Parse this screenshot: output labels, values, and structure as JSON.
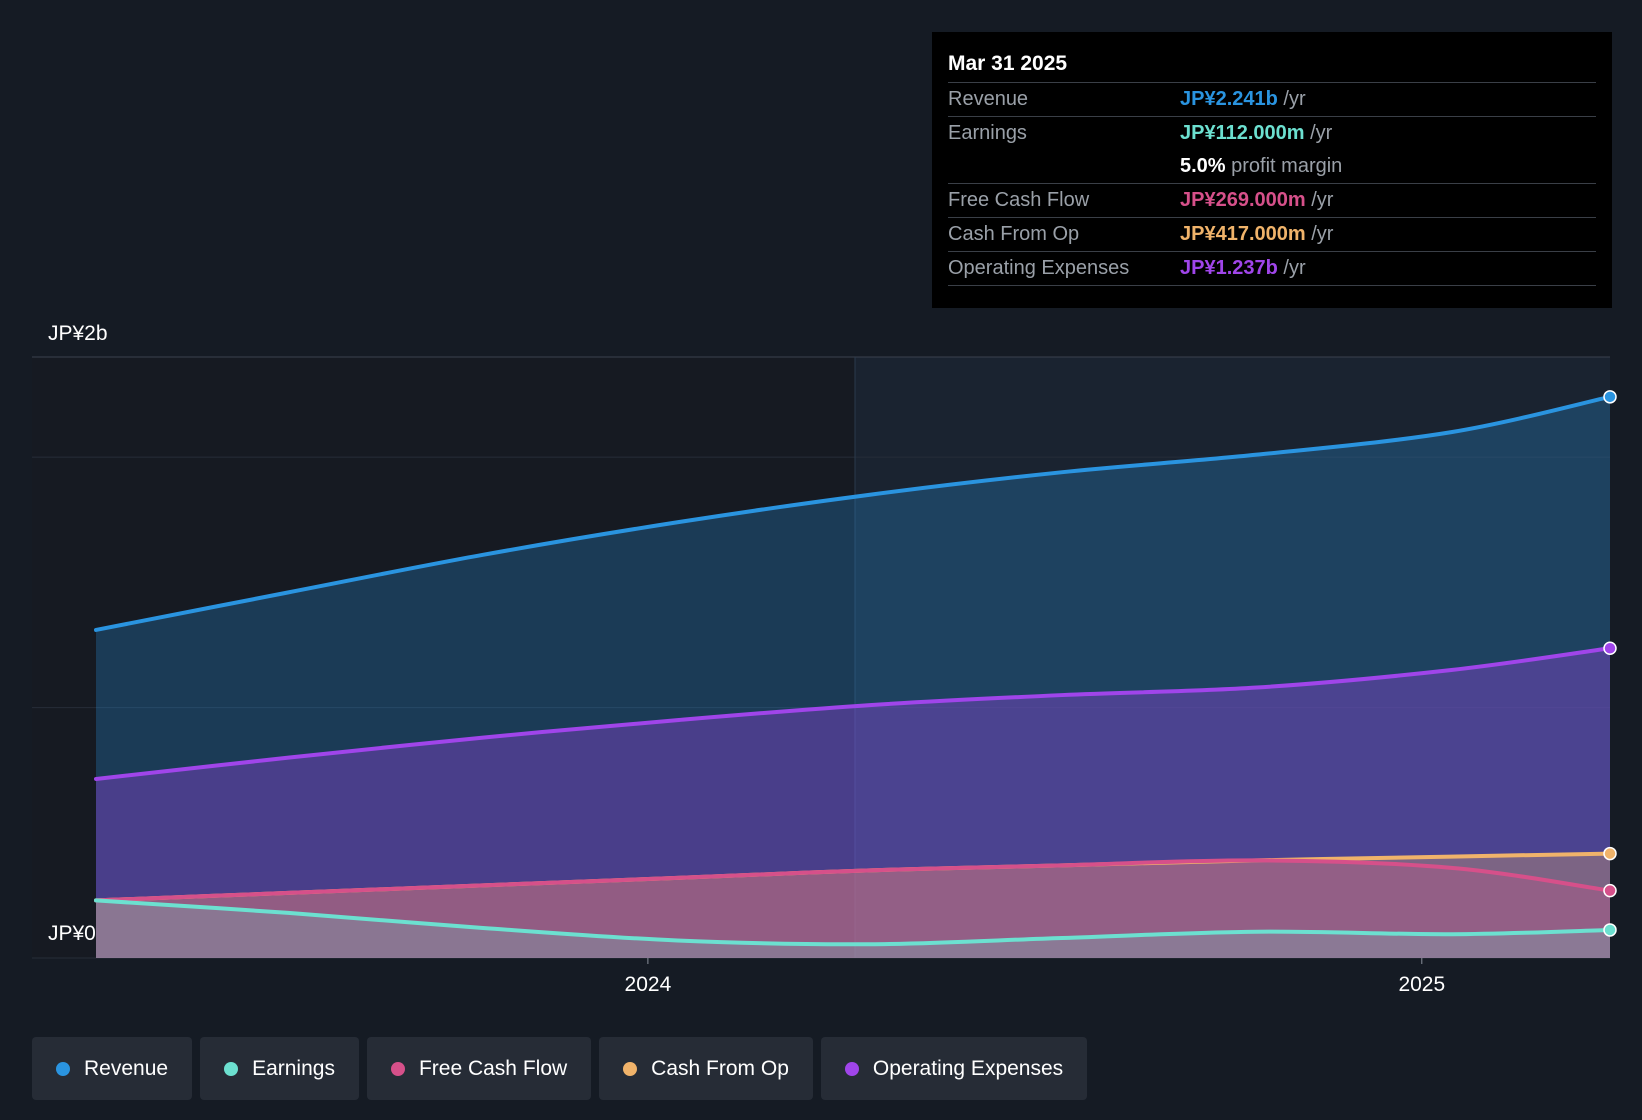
{
  "tooltip": {
    "date": "Mar 31 2025",
    "rows": [
      {
        "label": "Revenue",
        "value": "JP¥2.241b",
        "unit": "/yr",
        "color": "#2a94e0"
      },
      {
        "label": "Earnings",
        "value": "JP¥112.000m",
        "unit": "/yr",
        "color": "#6ce0d0"
      },
      {
        "label": "",
        "value": "5.0%",
        "unit": "profit margin",
        "color": "#ffffff"
      },
      {
        "label": "Free Cash Flow",
        "value": "JP¥269.000m",
        "unit": "/yr",
        "color": "#d6508a"
      },
      {
        "label": "Cash From Op",
        "value": "JP¥417.000m",
        "unit": "/yr",
        "color": "#f0b36a"
      },
      {
        "label": "Operating Expenses",
        "value": "JP¥1.237b",
        "unit": "/yr",
        "color": "#a045ea"
      }
    ]
  },
  "legend": [
    {
      "label": "Revenue",
      "color": "#2a94e0"
    },
    {
      "label": "Earnings",
      "color": "#6ce0d0"
    },
    {
      "label": "Free Cash Flow",
      "color": "#d6508a"
    },
    {
      "label": "Cash From Op",
      "color": "#f0b36a"
    },
    {
      "label": "Operating Expenses",
      "color": "#a045ea"
    }
  ],
  "chart_data": {
    "type": "area",
    "currency": "JP¥",
    "ytick_labels": [
      "JP¥2b",
      "JP¥0"
    ],
    "xtick_labels": [
      "2024",
      "2025"
    ],
    "ylim": [
      0,
      2400
    ],
    "x": [
      "2023-04-15",
      "2023-07-15",
      "2023-10-15",
      "2024-01-15",
      "2024-04-15",
      "2024-07-15",
      "2024-10-15",
      "2025-01-15",
      "2025-03-31"
    ],
    "xtick_dates": [
      "2024-01-01",
      "2025-01-01"
    ],
    "xrange": [
      "2023-04-15",
      "2025-03-31"
    ],
    "highlight_start": "2024-03-31",
    "series": [
      {
        "name": "Revenue",
        "color": "#2a94e0",
        "values": [
          1310,
          1460,
          1610,
          1740,
          1850,
          1940,
          2010,
          2100,
          2241
        ]
      },
      {
        "name": "Operating Expenses",
        "color": "#a045ea",
        "values": [
          715,
          800,
          880,
          950,
          1010,
          1050,
          1080,
          1150,
          1237
        ]
      },
      {
        "name": "Cash From Op",
        "color": "#f0b36a",
        "values": [
          230,
          260,
          290,
          320,
          350,
          370,
          390,
          405,
          417
        ]
      },
      {
        "name": "Free Cash Flow",
        "color": "#d6508a",
        "values": [
          230,
          260,
          290,
          320,
          350,
          370,
          390,
          360,
          269
        ]
      },
      {
        "name": "Earnings",
        "color": "#6ce0d0",
        "values": [
          230,
          180,
          120,
          70,
          55,
          80,
          105,
          95,
          112
        ]
      }
    ]
  }
}
